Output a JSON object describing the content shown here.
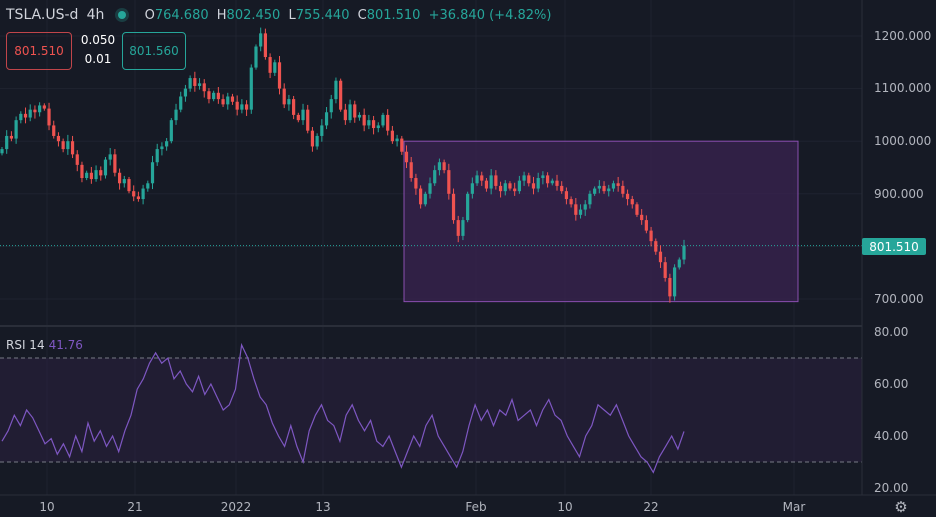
{
  "header": {
    "symbol": "TSLA.US-d",
    "interval": "4h",
    "open_label": "O",
    "open": "764.680",
    "high_label": "H",
    "high": "802.450",
    "low_label": "L",
    "low": "755.440",
    "close_label": "C",
    "close": "801.510",
    "change": "+36.840 (+4.82%)"
  },
  "trade": {
    "sell_price": "801.510",
    "spread": "0.050",
    "lot": "0.01",
    "buy_price": "801.560"
  },
  "last_price_label": "801.510",
  "rsi": {
    "label": "RSI 14",
    "value": "41.76"
  },
  "colors": {
    "background": "#161a25",
    "up": "#26a69a",
    "down": "#ef5350",
    "rsi_line": "#7e57c2",
    "box_fill": "#3a2350",
    "box_stroke": "#8a4fb0"
  },
  "icons": {
    "settings": "gear-icon",
    "status": "market-open-dot"
  },
  "chart_data": [
    {
      "type": "candlestick",
      "title": "TSLA.US-d 4h",
      "x_tick_labels": [
        "10",
        "21",
        "2022",
        "13",
        "Feb",
        "10",
        "22",
        "Mar"
      ],
      "y_tick_labels": [
        "1200.000",
        "1100.000",
        "1000.000",
        "900.000",
        "700.000"
      ],
      "ylim": [
        650,
        1250
      ],
      "grid": true,
      "last_price": 801.51,
      "ohlc_series": {
        "name": "TSLA.US-d",
        "close": [
          985,
          1010,
          1005,
          1040,
          1052,
          1045,
          1060,
          1055,
          1068,
          1062,
          1030,
          1010,
          1000,
          985,
          1000,
          975,
          955,
          930,
          940,
          928,
          945,
          935,
          965,
          975,
          940,
          920,
          928,
          905,
          895,
          890,
          910,
          920,
          960,
          985,
          990,
          1000,
          1040,
          1060,
          1085,
          1100,
          1120,
          1105,
          1110,
          1095,
          1080,
          1092,
          1080,
          1070,
          1085,
          1075,
          1060,
          1070,
          1060,
          1140,
          1180,
          1205,
          1160,
          1130,
          1150,
          1100,
          1070,
          1080,
          1050,
          1040,
          1060,
          1020,
          990,
          1010,
          1030,
          1055,
          1080,
          1115,
          1060,
          1040,
          1070,
          1045,
          1050,
          1030,
          1040,
          1025,
          1030,
          1050,
          1020,
          1000,
          1005,
          980,
          960,
          930,
          910,
          880,
          900,
          920,
          945,
          960,
          945,
          900,
          850,
          820,
          850,
          900,
          920,
          935,
          925,
          910,
          935,
          915,
          905,
          920,
          910,
          905,
          925,
          935,
          920,
          910,
          930,
          935,
          920,
          925,
          915,
          905,
          890,
          880,
          860,
          870,
          880,
          900,
          910,
          915,
          905,
          910,
          920,
          915,
          900,
          890,
          880,
          860,
          850,
          830,
          810,
          790,
          770,
          740,
          705,
          760,
          775,
          801.5
        ]
      },
      "annotation": {
        "type": "rectangle",
        "price_top": 1000,
        "price_bottom": 695
      }
    },
    {
      "type": "line",
      "title": "RSI 14",
      "y_tick_labels": [
        "80.00",
        "60.00",
        "40.00",
        "20.00"
      ],
      "ylim": [
        20,
        80
      ],
      "bands": [
        30,
        70
      ],
      "series": [
        {
          "name": "RSI 14",
          "values": [
            38,
            42,
            48,
            44,
            50,
            47,
            42,
            37,
            39,
            33,
            37,
            32,
            40,
            34,
            45,
            38,
            42,
            36,
            40,
            34,
            42,
            48,
            58,
            62,
            68,
            72,
            68,
            70,
            62,
            65,
            60,
            57,
            63,
            56,
            60,
            55,
            50,
            52,
            58,
            75,
            70,
            62,
            55,
            52,
            45,
            40,
            36,
            44,
            36,
            30,
            42,
            48,
            52,
            46,
            44,
            38,
            48,
            52,
            46,
            42,
            46,
            38,
            36,
            40,
            34,
            28,
            34,
            40,
            36,
            44,
            48,
            40,
            36,
            32,
            28,
            34,
            44,
            52,
            46,
            50,
            44,
            50,
            48,
            54,
            46,
            48,
            50,
            44,
            50,
            54,
            48,
            46,
            40,
            36,
            32,
            40,
            44,
            52,
            50,
            48,
            52,
            46,
            40,
            36,
            32,
            30,
            26,
            32,
            36,
            40,
            35,
            41.76
          ]
        }
      ]
    }
  ]
}
